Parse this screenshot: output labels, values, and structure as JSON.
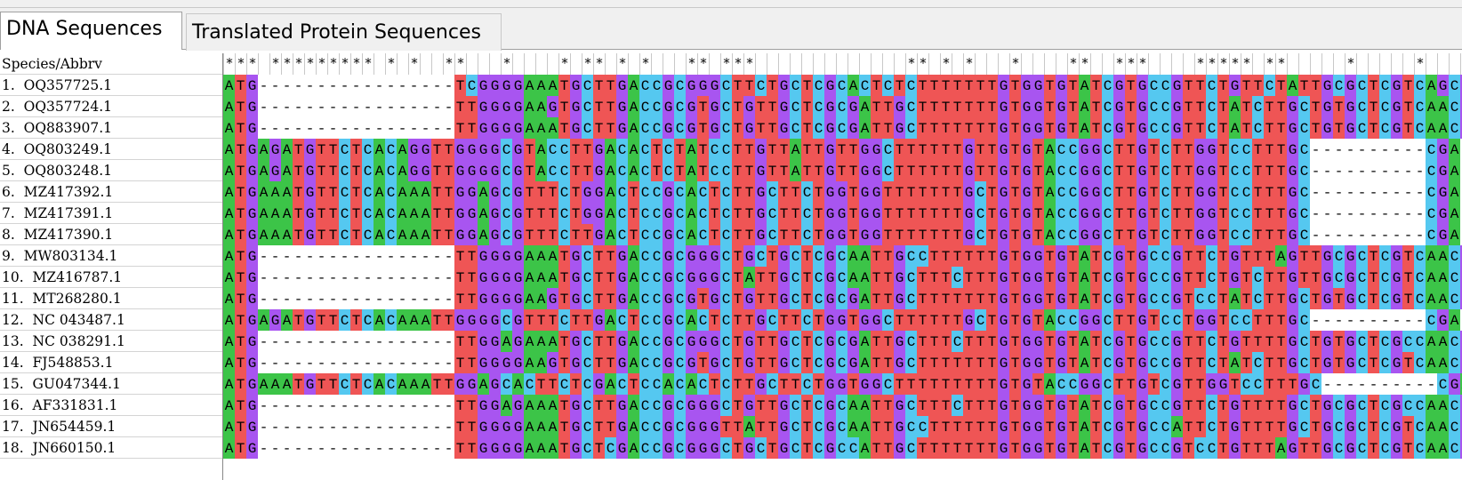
{
  "tabs": [
    {
      "label": "DNA Sequences",
      "selected": true
    },
    {
      "label": "Translated Protein Sequences",
      "selected": false
    }
  ],
  "header_label": "Species/Abbrv",
  "conservation": "*** *********-*-*--**---*--- *-**-*-*---**-***-------------**-*-*---*----**--***----*****-**-----*-----*--------**----------**-",
  "colors": {
    "A": "#3cc448",
    "T": "#ef5555",
    "G": "#a855f0",
    "C": "#55c8f0",
    "gap": "#ffffff"
  },
  "sequences": [
    {
      "label": "1.  OQ357725.1",
      "seq": "ATG-----------------TCGGGGAAATGCTTGACCGCGGGCTTCTGCTCGCACTCTCTTTTTTTGTGGTGTATCGTGCCGTTCTGTTCTATTGCGCTCGTCAGCGC"
    },
    {
      "label": "2.  OQ357724.1",
      "seq": "ATG-----------------TTGGGGAAGTGCTTGACCGCGTGCTGTTGCTCGCGATTGCTTTTTTTGTGGTGTATCGTGCCGTTCTATCTTGCTGTGCTCGTCAACGC"
    },
    {
      "label": "3.  OQ883907.1",
      "seq": "ATG-----------------TTGGGGAAATGCTTGACCGCGTGCTGTTGCTCGCGATTGCTTTTTTTGTGGTGTATCGTGCCGTTCTATCTTGCTGTGCTCGTCAACGC"
    },
    {
      "label": "4.  OQ803249.1",
      "seq": "ATGAGATGTTCTCACAGGTTGGGGCGTACCTTGACACTCTATCCTTGTTATTGTTGGCTTTTTTGTTGTGTACCGGCTTGTCTTGGTCCTTTGC----------CGA"
    },
    {
      "label": "5.  OQ803248.1",
      "seq": "ATGAGATGTTCTCACAGGTTGGGGCGTACCTTGACACTCTATCCTTGTTATTGTTGGCTTTTTTGTTGTGTACCGGCTTGTCTTGGTCCTTTGC----------CGA"
    },
    {
      "label": "6.  MZ417392.1",
      "seq": "ATGAAATGTTCTCACAAATTGGAGCGTTTCTGGACTCCGCACTCTTGCTTCTGGTGGTTTTTTTGCTGTGTACCGGCTTGTCTTGGTCCTTTGC----------CGA"
    },
    {
      "label": "7.  MZ417391.1",
      "seq": "ATGAAATGTTCTCACAAATTGGAGCGTTTCTGGACTCCGCACTCTTGCTTCTGGTGGTTTTTTTGCTGTGTACCGGCTTGTCTTGGTCCTTTGC----------CGA"
    },
    {
      "label": "8.  MZ417390.1",
      "seq": "ATGAAATGTTCTCACAAATTGGAGCGTTTCTTGACTCCGCACTCTTGCTTCTGGTGGTTTTTTTGCTGTGTACCGGCTTGTCTTGGTCCTTTGC----------CGA"
    },
    {
      "label": "9.  MW803134.1",
      "seq": "ATG-----------------TTGGGGAAATGCTTGACCGCGGGCTGCTGCTCGCAATTGCCTTTTTTGTGGTGTATCGTGCCGTTCTGTTTAGTTGCGCTCGTCAACGC"
    },
    {
      "label": "10.  MZ416787.1",
      "seq": "ATG-----------------TTGGGGAAATGCTTGACCGCGGGCTATTGCTCGCAATTGCTTTCTTTGTGGTGTATCGTGCCGTTCTGTCTTGTTGCGCTCGTCAACGC"
    },
    {
      "label": "11.  MT268280.1",
      "seq": "ATG-----------------TTGGGGAAGTGCTTGACCGCGTGCTGTTGCTCGCGATTGCTTTTTTTGTGGTGTATCGTGCCGTCCTATCTTGCTGTGCTCGTCAACGC"
    },
    {
      "label": "12.  NC 043487.1",
      "seq": "ATGAGATGTTCTCACAAATTGGGGCGTTTCTTGACTCCGCACTCTTGCTTCTGGTGGCTTTTTTGCTGTGTACCGGCTTGTCCTGGTCCTTTGC----------CGA"
    },
    {
      "label": "13.  NC 038291.1",
      "seq": "ATG-----------------TTGGAGAAATGCTTGACCGCGGGCTGTTGCTCGCGATTGCTTTCTTTGTGGTGTATCGTGCCGTTCTGTTTTGCTGTGCTCGCCAACGC"
    },
    {
      "label": "14.  FJ548853.1",
      "seq": "ATG-----------------TTGGGGAAGTGCTTGACCGCGTGCTGTTGCTCGCGATTGCTTTTTTTGTGGTGTATCGTGCCGTTCTATCTTGCTGTGCTCGTCAACGC"
    },
    {
      "label": "15.  GU047344.1",
      "seq": "ATGAAATGTTCTCACAAATTGGAGCACTTCTCGACTCCACACTCTTGCTTCTGGTGGCTTTTTTTTTGTGTACCGGCTTGTCGTTGGTCCTTTGC----------CGA"
    },
    {
      "label": "16.  AF331831.1",
      "seq": "ATG-----------------TTGGAGAAATGCTTGACCGCGGGCTGTTGCTCGCAATTGCTTTCTTTGTGGTGTATCGTGCCGTTCTGTTTTGCTGCGCTCGCCAACGC"
    },
    {
      "label": "17.  JN654459.1",
      "seq": "ATG-----------------TTGGGGAAATGCTTGACCGCGGGTTATTGCTCGCAATTGCCTTTTTTGTGGTGTATCGTGCCATTCTGTTTTGCTGCGCTCGTCAACGC"
    },
    {
      "label": "18.  JN660150.1",
      "seq": "ATG-----------------TTGGGGAAATGCTCGACCGCGGGCTGCTGCTCGCCATTGCTTTTTTTGTGGTGTATCGTGCCGTCCTGTTTAGTTGCGCTCGTCAACGC"
    }
  ]
}
